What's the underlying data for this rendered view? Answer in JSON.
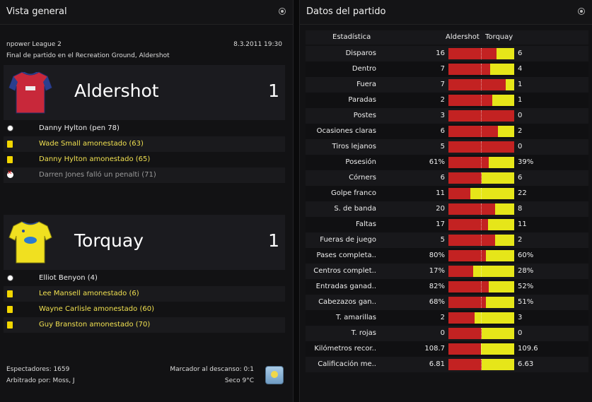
{
  "overview": {
    "title": "Vista general",
    "competition": "npower League 2",
    "datetime": "8.3.2011 19:30",
    "venue": "Final de partido en el Recreation Ground, Aldershot",
    "home": {
      "name": "Aldershot",
      "score": "1",
      "kit_colors": {
        "shirt": "#c8283a",
        "sleeves": "#2b3f8e"
      },
      "events": [
        {
          "type": "goal-ball-icon",
          "text": "Danny Hylton (pen 78)",
          "style": "white"
        },
        {
          "type": "yellow-card-icon",
          "text": "Wade Small amonestado (63)",
          "style": "yellow"
        },
        {
          "type": "yellow-card-icon",
          "text": "Danny Hylton amonestado (65)",
          "style": "yellow"
        },
        {
          "type": "missed-penalty-icon",
          "text": "Darren Jones falló un penalti (71)",
          "style": "grey"
        }
      ]
    },
    "away": {
      "name": "Torquay",
      "score": "1",
      "kit_colors": {
        "shirt": "#f0e020",
        "trim": "#2a4f9a"
      },
      "events": [
        {
          "type": "goal-ball-icon",
          "text": "Elliot Benyon (4)",
          "style": "white"
        },
        {
          "type": "yellow-card-icon",
          "text": "Lee Mansell amonestado (6)",
          "style": "yellow"
        },
        {
          "type": "yellow-card-icon",
          "text": "Wayne Carlisle amonestado (60)",
          "style": "yellow"
        },
        {
          "type": "yellow-card-icon",
          "text": "Guy Branston amonestado (70)",
          "style": "yellow"
        }
      ]
    },
    "footer": {
      "attendance": "Espectadores: 1659",
      "referee": "Arbitrado por: Moss, J",
      "halftime": "Marcador al descanso: 0:1",
      "weather": "Seco 9°C",
      "weather_icon": "sunny-weather-icon"
    }
  },
  "match_stats": {
    "title": "Datos del partido",
    "headers": {
      "stat": "Estadística",
      "home": "Aldershot",
      "away": "Torquay"
    },
    "colors": {
      "home_bar": "#c32222",
      "away_bar": "#e6e619"
    },
    "rows": [
      {
        "label": "Disparos",
        "home": "16",
        "away": "6",
        "home_share": 0.727
      },
      {
        "label": "Dentro",
        "home": "7",
        "away": "4",
        "home_share": 0.636
      },
      {
        "label": "Fuera",
        "home": "7",
        "away": "1",
        "home_share": 0.875
      },
      {
        "label": "Paradas",
        "home": "2",
        "away": "1",
        "home_share": 0.667
      },
      {
        "label": "Postes",
        "home": "3",
        "away": "0",
        "home_share": 1.0
      },
      {
        "label": "Ocasiones claras",
        "home": "6",
        "away": "2",
        "home_share": 0.75
      },
      {
        "label": "Tiros lejanos",
        "home": "5",
        "away": "0",
        "home_share": 1.0
      },
      {
        "label": "Posesión",
        "home": "61%",
        "away": "39%",
        "home_share": 0.61
      },
      {
        "label": "Córners",
        "home": "6",
        "away": "6",
        "home_share": 0.5
      },
      {
        "label": "Golpe franco",
        "home": "11",
        "away": "22",
        "home_share": 0.333
      },
      {
        "label": "S. de banda",
        "home": "20",
        "away": "8",
        "home_share": 0.714
      },
      {
        "label": "Faltas",
        "home": "17",
        "away": "11",
        "home_share": 0.607
      },
      {
        "label": "Fueras de juego",
        "home": "5",
        "away": "2",
        "home_share": 0.714
      },
      {
        "label": "Pases completa..",
        "home": "80%",
        "away": "60%",
        "home_share": 0.571
      },
      {
        "label": "Centros complet..",
        "home": "17%",
        "away": "28%",
        "home_share": 0.378
      },
      {
        "label": "Entradas ganad..",
        "home": "82%",
        "away": "52%",
        "home_share": 0.612
      },
      {
        "label": "Cabezazos gan..",
        "home": "68%",
        "away": "51%",
        "home_share": 0.571
      },
      {
        "label": "T. amarillas",
        "home": "2",
        "away": "3",
        "home_share": 0.4
      },
      {
        "label": "T. rojas",
        "home": "0",
        "away": "0",
        "home_share": 0.5
      },
      {
        "label": "Kilómetros recor..",
        "home": "108.7",
        "away": "109.6",
        "home_share": 0.498
      },
      {
        "label": "Calificación me..",
        "home": "6.81",
        "away": "6.63",
        "home_share": 0.507
      }
    ]
  }
}
